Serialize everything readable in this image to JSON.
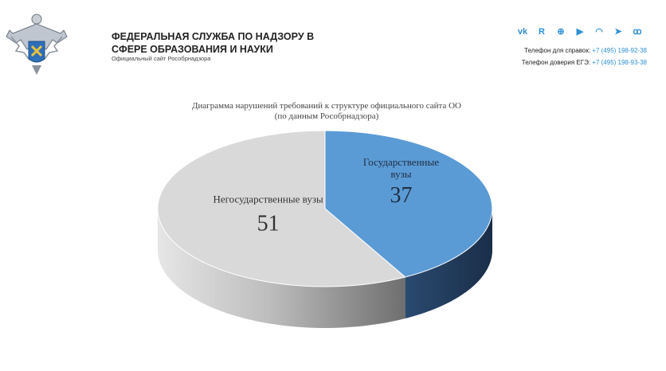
{
  "header": {
    "org_line1": "ФЕДЕРАЛЬНАЯ СЛУЖБА ПО НАДЗОРУ В",
    "org_line2": "СФЕРЕ ОБРАЗОВАНИЯ И НАУКИ",
    "subtitle": "Официальный сайт Рособрнадзора",
    "social_icons": [
      "vk-icon",
      "rutube-icon",
      "plus-icon",
      "youtube-icon",
      "rss-icon",
      "telegram-icon",
      "odnoklassniki-icon"
    ],
    "phone_label": "Телефон для справок:",
    "phone_number": "+7 (495) 198-92-38",
    "hotline_label": "Телефон доверия ЕГЭ:",
    "hotline_number": "+7 (495) 198-93-38"
  },
  "colors": {
    "accent": "#2e8fd4",
    "slice_state": "#5b9bd5",
    "slice_state_side": "#203a5a",
    "slice_nonstate": "#d9d9d9",
    "slice_nonstate_side": "#9a9a9a"
  },
  "chart_data": {
    "type": "pie",
    "title_line1": "Диаграмма нарушений  требований к структуре официального сайта ОО",
    "title_line2": "(по данным Рособрнадзора)",
    "style": "3d",
    "categories": [
      "Государственные вузы",
      "Негосударственные вузы"
    ],
    "values": [
      37,
      51
    ],
    "label_state_line1": "Государственные",
    "label_state_line2": "вузы",
    "label_nonstate": "Негосударственные вузы"
  }
}
